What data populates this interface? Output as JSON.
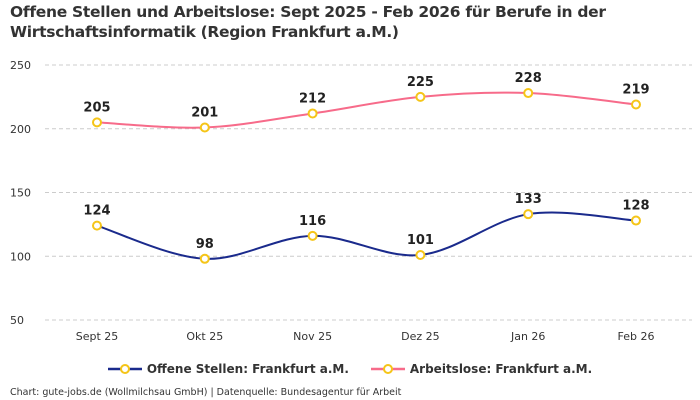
{
  "chart_data": {
    "type": "line",
    "title": "Offene Stellen und Arbeitslose: Sept 2025 - Feb 2026 für Berufe in der Wirtschaftsinformatik (Region Frankfurt a.M.)",
    "categories": [
      "Sept 25",
      "Okt 25",
      "Nov 25",
      "Dez 25",
      "Jan 26",
      "Feb 26"
    ],
    "series": [
      {
        "name": "Offene Stellen: Frankfurt a.M.",
        "values": [
          124,
          98,
          116,
          101,
          133,
          128
        ],
        "color": "#1a2a8c"
      },
      {
        "name": "Arbeitslose: Frankfurt a.M.",
        "values": [
          205,
          201,
          212,
          225,
          228,
          219
        ],
        "color": "#f76b8a"
      }
    ],
    "marker_color": "#f5c518",
    "yticks": [
      50,
      100,
      150,
      200,
      250
    ],
    "ylim": [
      50,
      250
    ],
    "grid": true,
    "smooth": true,
    "legend_position": "bottom",
    "xlabel": "",
    "ylabel": ""
  },
  "footer": "Chart: gute-jobs.de (Wollmilchsau GmbH) | Datenquelle: Bundesagentur für Arbeit"
}
